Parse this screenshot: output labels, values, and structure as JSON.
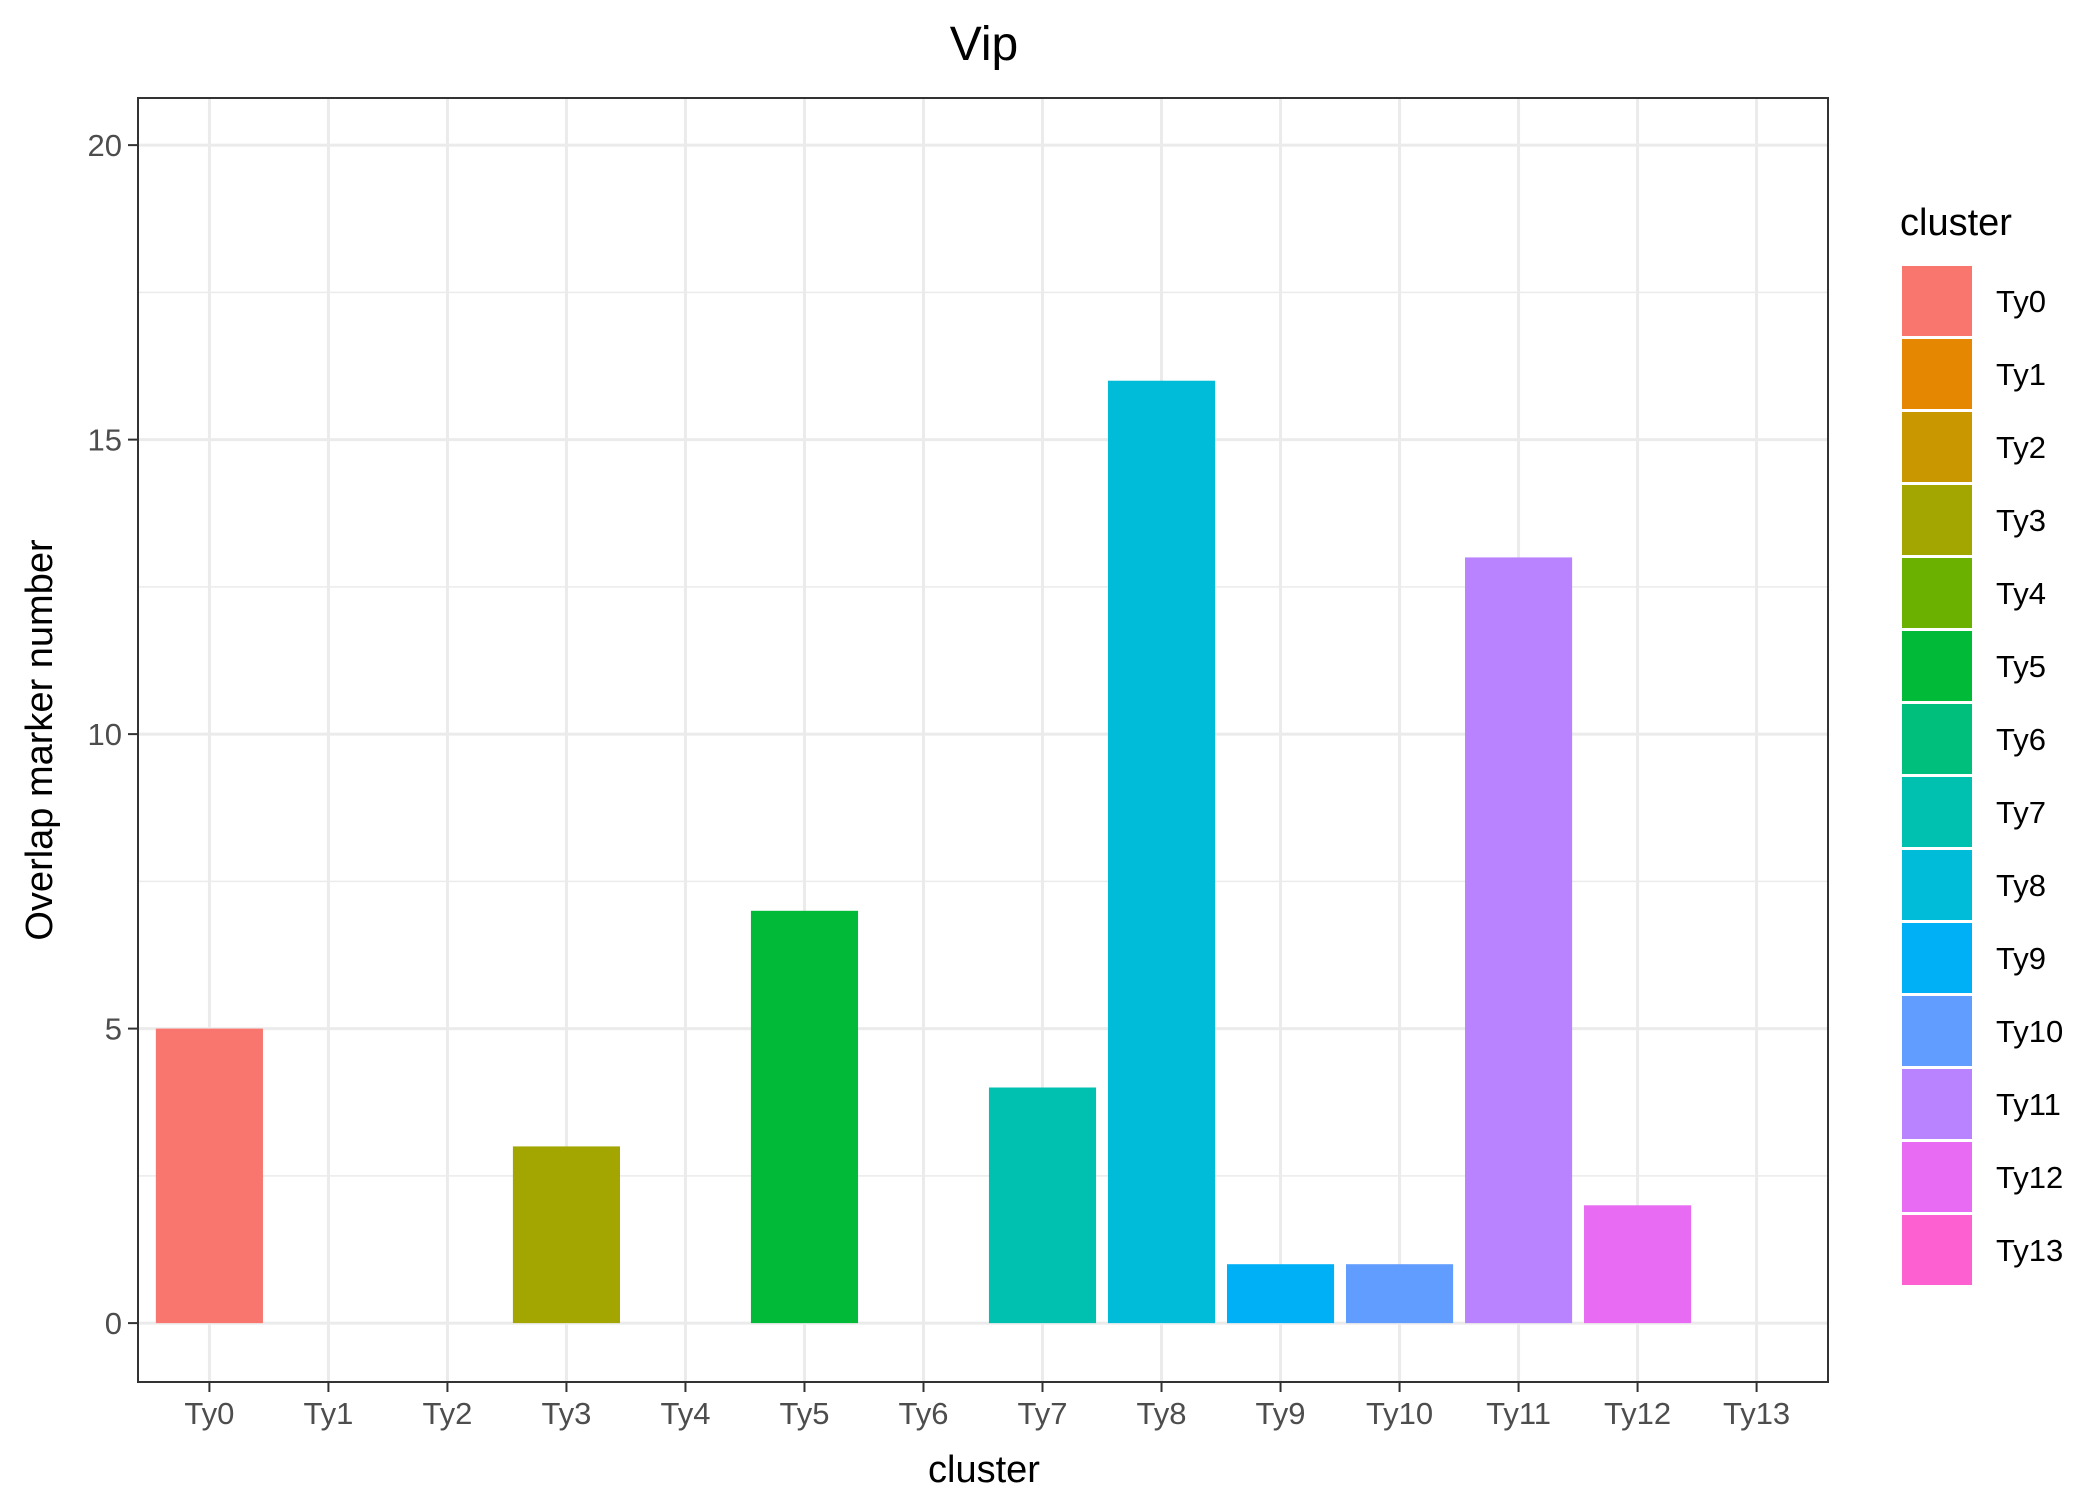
{
  "chart_data": {
    "type": "bar",
    "title": "Vip",
    "xlabel": "cluster",
    "ylabel": "Overlap marker number",
    "categories": [
      "Ty0",
      "Ty1",
      "Ty2",
      "Ty3",
      "Ty4",
      "Ty5",
      "Ty6",
      "Ty7",
      "Ty8",
      "Ty9",
      "Ty10",
      "Ty11",
      "Ty12",
      "Ty13"
    ],
    "values": [
      5,
      0,
      0,
      3,
      0,
      7,
      0,
      4,
      16,
      1,
      1,
      13,
      2,
      0
    ],
    "colors": [
      "#F8766D",
      "#E58700",
      "#C99800",
      "#A3A500",
      "#6BB100",
      "#00BA38",
      "#00BF7D",
      "#00C0AF",
      "#00BCD8",
      "#00B0F6",
      "#619CFF",
      "#B983FF",
      "#E76BF3",
      "#FD61D1"
    ],
    "ylim": [
      -1,
      20.8
    ],
    "yticks": [
      0,
      5,
      10,
      15,
      20
    ],
    "grid": true,
    "legend": {
      "title": "cluster",
      "position": "right"
    }
  }
}
